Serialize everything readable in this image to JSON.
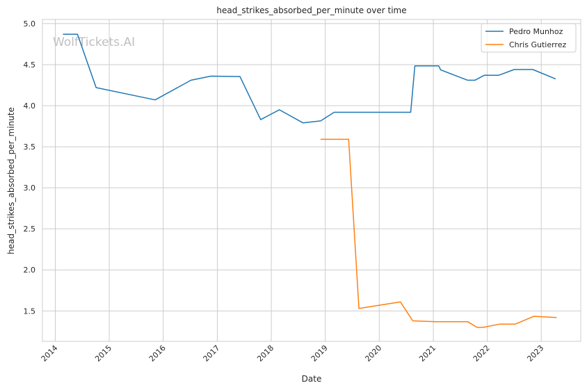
{
  "chart_data": {
    "type": "line",
    "title": "head_strikes_absorbed_per_minute over time",
    "xlabel": "Date",
    "ylabel": "head_strikes_absorbed_per_minute",
    "watermark": "WolfTickets.AI",
    "xlim": [
      "2013-10-06",
      "2023-09-25"
    ],
    "ylim": [
      1.13,
      5.05
    ],
    "x_ticks": [
      "2014",
      "2015",
      "2016",
      "2017",
      "2018",
      "2019",
      "2020",
      "2021",
      "2022",
      "2023"
    ],
    "y_ticks": [
      "1.5",
      "2.0",
      "2.5",
      "3.0",
      "3.5",
      "4.0",
      "4.5",
      "5.0"
    ],
    "grid": true,
    "legend_position": "top-right",
    "series": [
      {
        "name": "Pedro Munhoz",
        "color": "#1f77b4",
        "points": [
          [
            "2014-02-22",
            4.87
          ],
          [
            "2014-05-31",
            4.87
          ],
          [
            "2014-10-04",
            4.22
          ],
          [
            "2015-11-07",
            4.07
          ],
          [
            "2016-07-07",
            4.31
          ],
          [
            "2016-11-19",
            4.36
          ],
          [
            "2017-06-03",
            4.355
          ],
          [
            "2017-10-21",
            3.83
          ],
          [
            "2018-02-24",
            3.95
          ],
          [
            "2018-08-04",
            3.79
          ],
          [
            "2018-12-01",
            3.815
          ],
          [
            "2019-03-02",
            3.92
          ],
          [
            "2020-08-01",
            3.92
          ],
          [
            "2020-08-29",
            4.485
          ],
          [
            "2021-02-06",
            4.485
          ],
          [
            "2021-02-20",
            4.435
          ],
          [
            "2021-08-21",
            4.31
          ],
          [
            "2021-10-09",
            4.31
          ],
          [
            "2021-12-11",
            4.37
          ],
          [
            "2022-03-19",
            4.37
          ],
          [
            "2022-07-02",
            4.44
          ],
          [
            "2022-11-05",
            4.44
          ],
          [
            "2023-04-08",
            4.325
          ]
        ]
      },
      {
        "name": "Chris Gutierrez",
        "color": "#ff7f0e",
        "points": [
          [
            "2018-11-30",
            3.59
          ],
          [
            "2019-06-08",
            3.59
          ],
          [
            "2019-08-17",
            1.53
          ],
          [
            "2020-05-23",
            1.61
          ],
          [
            "2020-08-15",
            1.38
          ],
          [
            "2021-01-16",
            1.37
          ],
          [
            "2021-08-21",
            1.37
          ],
          [
            "2021-10-23",
            1.3
          ],
          [
            "2021-12-04",
            1.3
          ],
          [
            "2022-03-26",
            1.34
          ],
          [
            "2022-07-09",
            1.34
          ],
          [
            "2022-11-12",
            1.435
          ],
          [
            "2023-04-15",
            1.42
          ]
        ]
      }
    ]
  }
}
